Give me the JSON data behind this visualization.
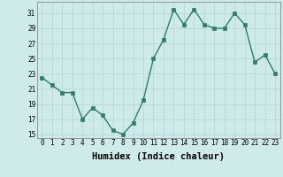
{
  "x": [
    0,
    1,
    2,
    3,
    4,
    5,
    6,
    7,
    8,
    9,
    10,
    11,
    12,
    13,
    14,
    15,
    16,
    17,
    18,
    19,
    20,
    21,
    22,
    23
  ],
  "y": [
    22.5,
    21.5,
    20.5,
    20.5,
    17.0,
    18.5,
    17.5,
    15.5,
    15.0,
    16.5,
    19.5,
    25.0,
    27.5,
    31.5,
    29.5,
    31.5,
    29.5,
    29.0,
    29.0,
    31.0,
    29.5,
    24.5,
    25.5,
    23.0
  ],
  "line_color": "#2e7d6e",
  "marker_color": "#2e7d6e",
  "bg_color": "#ceeaea",
  "grid_color": "#b8d8d8",
  "xlabel": "Humidex (Indice chaleur)",
  "ylim": [
    14.5,
    32.5
  ],
  "xlim": [
    -0.5,
    23.5
  ],
  "yticks": [
    15,
    17,
    19,
    21,
    23,
    25,
    27,
    29,
    31
  ],
  "xticks": [
    0,
    1,
    2,
    3,
    4,
    5,
    6,
    7,
    8,
    9,
    10,
    11,
    12,
    13,
    14,
    15,
    16,
    17,
    18,
    19,
    20,
    21,
    22,
    23
  ],
  "tick_fontsize": 5.5,
  "label_fontsize": 7.5,
  "line_width": 1.0,
  "marker_size": 2.5
}
